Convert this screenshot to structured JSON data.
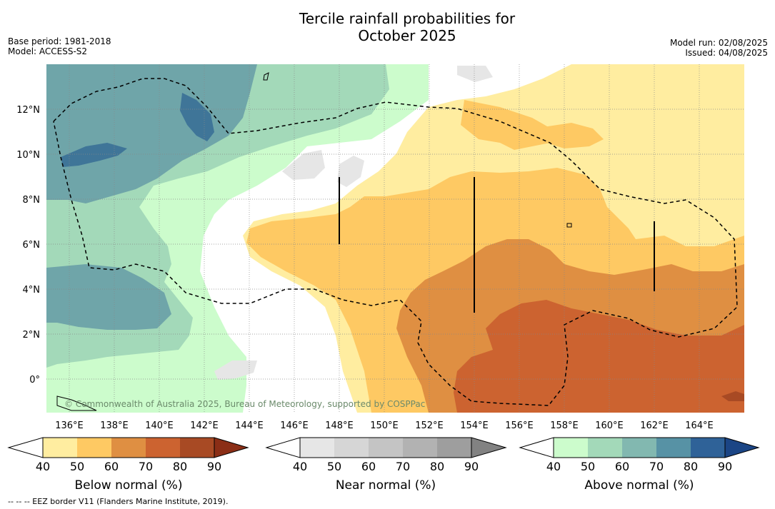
{
  "header": {
    "title_line1": "Tercile rainfall probabilities for",
    "title_line2": "October 2025",
    "base_period": "Base period: 1981-2018",
    "model": "Model: ACCESS-S2",
    "model_run": "Model run: 02/08/2025",
    "issued": "Issued: 04/08/2025"
  },
  "map": {
    "lat_labels": [
      "12°N",
      "10°N",
      "8°N",
      "6°N",
      "4°N",
      "2°N",
      "0°"
    ],
    "lon_labels": [
      "136°E",
      "138°E",
      "140°E",
      "142°E",
      "144°E",
      "146°E",
      "148°E",
      "150°E",
      "152°E",
      "154°E",
      "156°E",
      "158°E",
      "160°E",
      "162°E",
      "164°E"
    ],
    "copyright": "© Commonwealth of Australia 2025, Bureau of Meteorology, supported by COSPPac"
  },
  "colorbars": [
    {
      "label": "Below normal (%)",
      "ticks": [
        "40",
        "50",
        "60",
        "70",
        "80",
        "90"
      ],
      "colors": [
        "#ffeda0",
        "#fec963",
        "#df8f42",
        "#cc6330",
        "#a84a24",
        "#8b2e16"
      ]
    },
    {
      "label": "Near normal (%)",
      "ticks": [
        "40",
        "50",
        "60",
        "70",
        "80",
        "90"
      ],
      "colors": [
        "#e6e6e6",
        "#d6d6d6",
        "#c4c4c4",
        "#b2b2b2",
        "#9e9e9e",
        "#828282"
      ]
    },
    {
      "label": "Above normal (%)",
      "ticks": [
        "40",
        "50",
        "60",
        "70",
        "80",
        "90"
      ],
      "colors": [
        "#ccfccc",
        "#a3d9b9",
        "#82b8b0",
        "#5792a5",
        "#2f6298",
        "#1b4585"
      ]
    }
  ],
  "footer": {
    "legend_line": "--  --  -- EEZ border V11 (Flanders Marine Institute, 2019)."
  },
  "colors": {
    "below_40_50": "#ffeda0",
    "below_50_60": "#fec963",
    "below_60_70": "#df8f42",
    "below_70_80": "#cc6330",
    "near_40_50": "#e6e6e6",
    "above_40_50": "#ccfccc",
    "above_50_60": "#a3d9b9",
    "above_60_70": "#6fa5a9",
    "above_70_80": "#3f7598"
  }
}
